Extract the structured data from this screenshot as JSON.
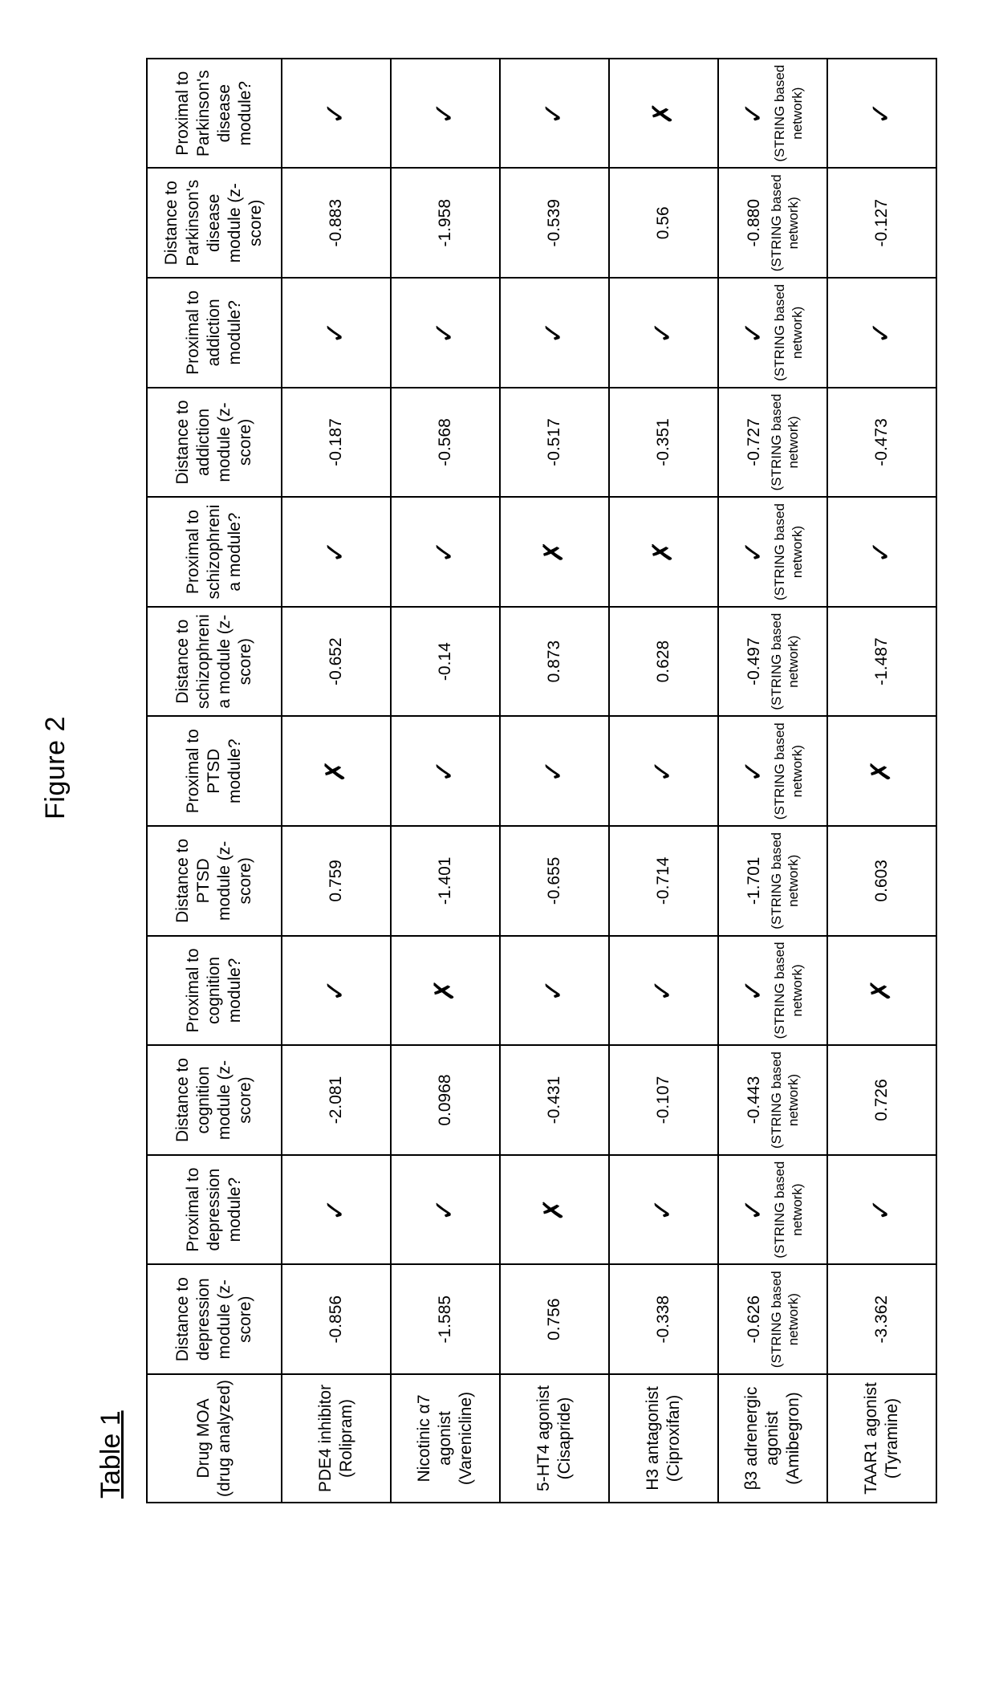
{
  "figure_label": "Figure 2",
  "table_label": "Table 1",
  "check_glyph": "✓",
  "cross_glyph": "✗",
  "string_note": "(STRING based network)",
  "columns": [
    "Drug MOA (drug analyzed)",
    "Distance to depression module (z-score)",
    "Proximal to depression module?",
    "Distance to cognition module (z-score)",
    "Proximal to cognition module?",
    "Distance to PTSD module (z-score)",
    "Proximal to PTSD module?",
    "Distance to schizophrenia module (z-score)",
    "Proximal to schizophrenia module?",
    "Distance to addiction module (z-score)",
    "Proximal to addiction module?",
    "Distance to Parkinson's disease module (z-score)",
    "Proximal to Parkinson's disease module?"
  ],
  "rows": [
    {
      "drug": "PDE4 inhibitor (Rolipram)",
      "cells": [
        {
          "v": "-0.856"
        },
        {
          "m": "check"
        },
        {
          "v": "-2.081"
        },
        {
          "m": "check"
        },
        {
          "v": "0.759"
        },
        {
          "m": "cross"
        },
        {
          "v": "-0.652"
        },
        {
          "m": "check"
        },
        {
          "v": "-0.187"
        },
        {
          "m": "check"
        },
        {
          "v": "-0.883"
        },
        {
          "m": "check"
        }
      ]
    },
    {
      "drug": "Nicotinic α7 agonist (Varenicline)",
      "cells": [
        {
          "v": "-1.585"
        },
        {
          "m": "check"
        },
        {
          "v": "0.0968"
        },
        {
          "m": "cross"
        },
        {
          "v": "-1.401"
        },
        {
          "m": "check"
        },
        {
          "v": "-0.14"
        },
        {
          "m": "check"
        },
        {
          "v": "-0.568"
        },
        {
          "m": "check"
        },
        {
          "v": "-1.958"
        },
        {
          "m": "check"
        }
      ]
    },
    {
      "drug": "5-HT4 agonist (Cisapride)",
      "cells": [
        {
          "v": "0.756"
        },
        {
          "m": "cross"
        },
        {
          "v": "-0.431"
        },
        {
          "m": "check"
        },
        {
          "v": "-0.655"
        },
        {
          "m": "check"
        },
        {
          "v": "0.873"
        },
        {
          "m": "cross"
        },
        {
          "v": "-0.517"
        },
        {
          "m": "check"
        },
        {
          "v": "-0.539"
        },
        {
          "m": "check"
        }
      ]
    },
    {
      "drug": "H3 antagonist (Ciproxifan)",
      "cells": [
        {
          "v": "-0.338"
        },
        {
          "m": "check"
        },
        {
          "v": "-0.107"
        },
        {
          "m": "check"
        },
        {
          "v": "-0.714"
        },
        {
          "m": "check"
        },
        {
          "v": "0.628"
        },
        {
          "m": "cross"
        },
        {
          "v": "-0.351"
        },
        {
          "m": "check"
        },
        {
          "v": "0.56"
        },
        {
          "m": "cross"
        }
      ]
    },
    {
      "drug": "β3 adrenergic agonist (Amibegron)",
      "cells": [
        {
          "v": "-0.626",
          "note": true
        },
        {
          "m": "check",
          "note": true
        },
        {
          "v": "-0.443",
          "note": true
        },
        {
          "m": "check",
          "note": true
        },
        {
          "v": "-1.701",
          "note": true
        },
        {
          "m": "check",
          "note": true
        },
        {
          "v": "-0.497",
          "note": true
        },
        {
          "m": "check",
          "note": true
        },
        {
          "v": "-0.727",
          "note": true
        },
        {
          "m": "check",
          "note": true
        },
        {
          "v": "-0.880",
          "note": true
        },
        {
          "m": "check",
          "note": true
        }
      ]
    },
    {
      "drug": "TAAR1 agonist (Tyramine)",
      "cells": [
        {
          "v": "-3.362"
        },
        {
          "m": "check"
        },
        {
          "v": "0.726"
        },
        {
          "m": "cross"
        },
        {
          "v": "0.603"
        },
        {
          "m": "cross"
        },
        {
          "v": "-1.487"
        },
        {
          "m": "check"
        },
        {
          "v": "-0.473"
        },
        {
          "m": "check"
        },
        {
          "v": "-0.127"
        },
        {
          "m": "check"
        }
      ]
    }
  ]
}
